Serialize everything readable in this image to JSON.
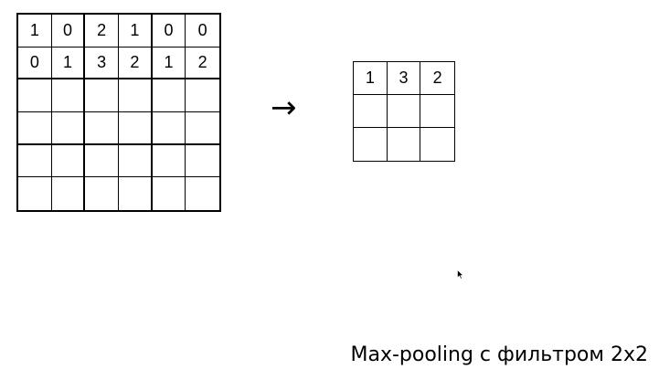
{
  "input_grid": {
    "rows": [
      [
        "1",
        "0",
        "2",
        "1",
        "0",
        "0"
      ],
      [
        "0",
        "1",
        "3",
        "2",
        "1",
        "2"
      ],
      [
        "",
        "",
        "",
        "",
        "",
        ""
      ],
      [
        "",
        "",
        "",
        "",
        "",
        ""
      ],
      [
        "",
        "",
        "",
        "",
        "",
        ""
      ],
      [
        "",
        "",
        "",
        "",
        "",
        ""
      ]
    ]
  },
  "arrow": "→",
  "output_grid": {
    "rows": [
      [
        "1",
        "3",
        "2"
      ],
      [
        "",
        "",
        ""
      ],
      [
        "",
        "",
        ""
      ]
    ]
  },
  "caption": "Max-pooling с фильтром 2x2",
  "icons": {
    "cursor": "mouse-pointer-icon"
  }
}
